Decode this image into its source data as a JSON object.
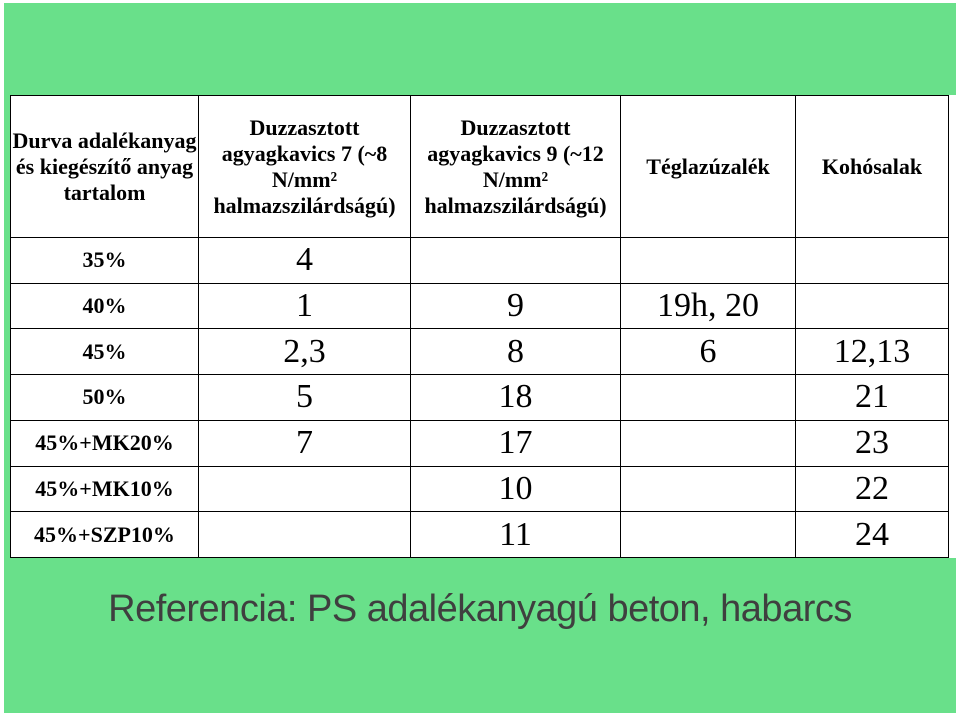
{
  "table": {
    "headers": [
      "Durva adalékanyag és kiegészítő anyag tartalom",
      "Duzzasztott agyagkavics 7 (~8 N/mm² halmazszilárdságú)",
      "Duzzasztott agyagkavics 9 (~12 N/mm² halmazszilárdságú)",
      "Téglazúzalék",
      "Kohósalak"
    ],
    "rows": [
      [
        "35%",
        "4",
        "",
        "",
        ""
      ],
      [
        "40%",
        "1",
        "9",
        "19h, 20",
        ""
      ],
      [
        "45%",
        "2,3",
        "8",
        "6",
        "12,13"
      ],
      [
        "50%",
        "5",
        "18",
        "",
        "21"
      ],
      [
        "45%+MK20%",
        "7",
        "17",
        "",
        "23"
      ],
      [
        "45%+MK10%",
        "",
        "10",
        "",
        "22"
      ],
      [
        "45%+SZP10%",
        "",
        "11",
        "",
        "24"
      ]
    ]
  },
  "caption": "Referencia: PS adalékanyagú beton, habarcs",
  "colors": {
    "frame_green": "#69e08a",
    "caption_text": "#3f3f3f"
  }
}
